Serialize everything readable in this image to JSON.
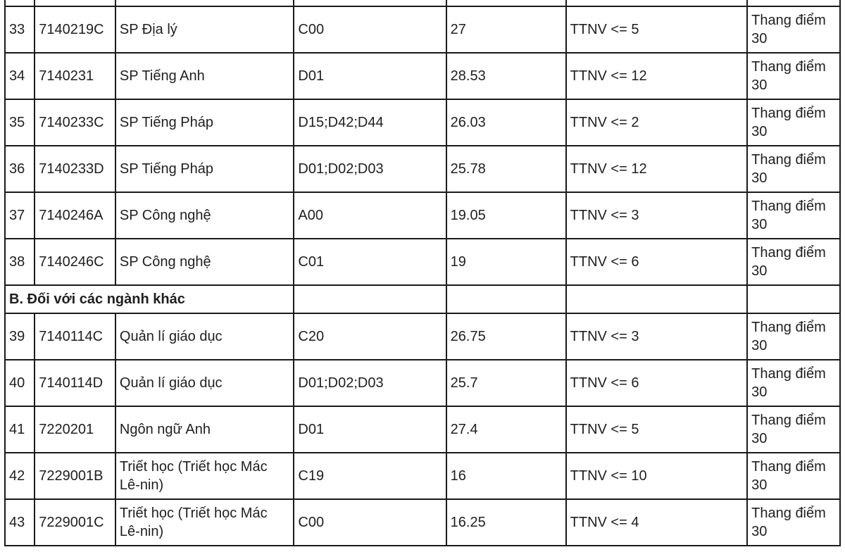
{
  "columns": [
    "idx",
    "code",
    "name",
    "block",
    "score",
    "ttnv",
    "scale"
  ],
  "section_header": "B. Đối với các ngành khác",
  "rows_top": [
    {
      "idx": "33",
      "code": "7140219C",
      "name": "SP Địa lý",
      "block": "C00",
      "score": "27",
      "ttnv": "TTNV <= 5",
      "scale": "Thang điểm 30"
    },
    {
      "idx": "34",
      "code": "7140231",
      "name": "SP Tiếng Anh",
      "block": "D01",
      "score": "28.53",
      "ttnv": "TTNV <= 12",
      "scale": "Thang điểm 30"
    },
    {
      "idx": "35",
      "code": "7140233C",
      "name": "SP Tiếng Pháp",
      "block": "D15;D42;D44",
      "score": "26.03",
      "ttnv": "TTNV <= 2",
      "scale": "Thang điểm 30"
    },
    {
      "idx": "36",
      "code": "7140233D",
      "name": "SP Tiếng Pháp",
      "block": "D01;D02;D03",
      "score": "25.78",
      "ttnv": "TTNV <= 12",
      "scale": "Thang điểm 30"
    },
    {
      "idx": "37",
      "code": "7140246A",
      "name": "SP Công nghệ",
      "block": "A00",
      "score": "19.05",
      "ttnv": "TTNV <= 3",
      "scale": "Thang điểm 30"
    },
    {
      "idx": "38",
      "code": "7140246C",
      "name": "SP Công nghệ",
      "block": "C01",
      "score": "19",
      "ttnv": "TTNV <= 6",
      "scale": "Thang điểm 30"
    }
  ],
  "rows_bottom": [
    {
      "idx": "39",
      "code": "7140114C",
      "name": "Quản lí giáo dục",
      "block": "C20",
      "score": "26.75",
      "ttnv": "TTNV <= 3",
      "scale": "Thang điểm 30"
    },
    {
      "idx": "40",
      "code": "7140114D",
      "name": "Quản lí giáo dục",
      "block": "D01;D02;D03",
      "score": "25.7",
      "ttnv": "TTNV <= 6",
      "scale": "Thang điểm 30"
    },
    {
      "idx": "41",
      "code": "7220201",
      "name": "Ngôn ngữ Anh",
      "block": "D01",
      "score": "27.4",
      "ttnv": "TTNV <= 5",
      "scale": "Thang điểm 30"
    },
    {
      "idx": "42",
      "code": "7229001B",
      "name": "Triết học (Triết học Mác Lê-nin)",
      "block": "C19",
      "score": "16",
      "ttnv": "TTNV <= 10",
      "scale": "Thang điểm 30"
    },
    {
      "idx": "43",
      "code": "7229001C",
      "name": "Triết học (Triết học Mác Lê-nin)",
      "block": "C00",
      "score": "16.25",
      "ttnv": "TTNV <= 4",
      "scale": "Thang điểm 30"
    }
  ]
}
